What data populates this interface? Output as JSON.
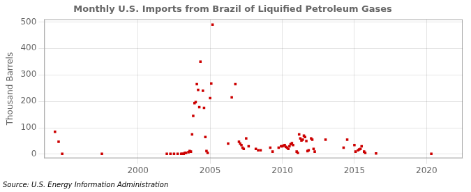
{
  "chart_data": {
    "type": "scatter",
    "title": "Monthly U.S. Imports from Brazil of Liquified Petroleum Gases",
    "ylabel": "Thousand Barrels",
    "source": "Source: U.S. Energy Information Administration",
    "xlim": [
      1993.5,
      2022.5
    ],
    "ylim": [
      -15,
      510
    ],
    "xticks": [
      2000,
      2005,
      2010,
      2015,
      2020
    ],
    "yticks": [
      0,
      100,
      200,
      300,
      400,
      500
    ],
    "grid": true,
    "color": "#cc0000",
    "marker": "square",
    "x": [
      1994.25,
      1994.5,
      1994.75,
      1997.5,
      2002.0,
      2002.25,
      2002.5,
      2002.75,
      2003.0,
      2003.08,
      2003.17,
      2003.25,
      2003.33,
      2003.5,
      2003.58,
      2003.67,
      2003.75,
      2003.83,
      2003.92,
      2004.0,
      2004.08,
      2004.17,
      2004.25,
      2004.33,
      2004.5,
      2004.58,
      2004.67,
      2004.75,
      2004.83,
      2005.0,
      2005.08,
      2005.17,
      2006.25,
      2006.5,
      2006.75,
      2007.0,
      2007.08,
      2007.17,
      2007.25,
      2007.33,
      2007.5,
      2007.67,
      2008.17,
      2008.33,
      2008.5,
      2009.17,
      2009.33,
      2009.75,
      2009.92,
      2010.0,
      2010.08,
      2010.17,
      2010.25,
      2010.33,
      2010.42,
      2010.5,
      2010.58,
      2010.67,
      2010.75,
      2011.0,
      2011.08,
      2011.17,
      2011.25,
      2011.33,
      2011.42,
      2011.5,
      2011.58,
      2011.67,
      2011.75,
      2011.83,
      2012.0,
      2012.08,
      2012.17,
      2012.25,
      2013.0,
      2014.25,
      2014.5,
      2015.0,
      2015.08,
      2015.25,
      2015.33,
      2015.42,
      2015.5,
      2015.67,
      2015.75,
      2016.5,
      2020.33
    ],
    "values": [
      85,
      47,
      2,
      2,
      2,
      2,
      2,
      2,
      2,
      2,
      2,
      5,
      5,
      8,
      12,
      10,
      75,
      145,
      193,
      197,
      265,
      243,
      178,
      350,
      240,
      175,
      65,
      12,
      5,
      212,
      267,
      490,
      40,
      215,
      265,
      47,
      40,
      35,
      25,
      20,
      60,
      30,
      20,
      15,
      15,
      25,
      10,
      25,
      30,
      30,
      32,
      35,
      28,
      25,
      20,
      30,
      38,
      42,
      35,
      10,
      5,
      75,
      60,
      52,
      55,
      70,
      65,
      50,
      12,
      15,
      60,
      55,
      20,
      10,
      55,
      25,
      55,
      35,
      10,
      15,
      18,
      20,
      30,
      10,
      5,
      3,
      2
    ]
  }
}
